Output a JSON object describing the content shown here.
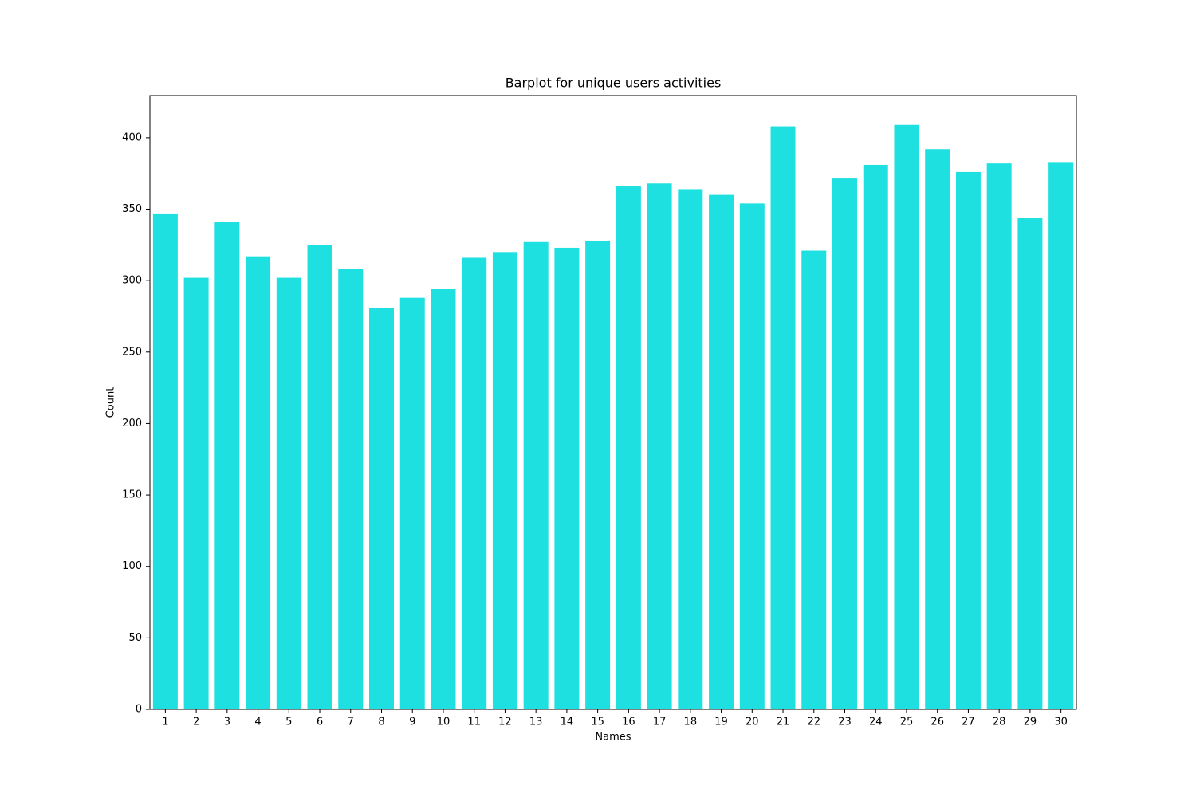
{
  "chart_data": {
    "type": "bar",
    "title": "Barplot for unique users activities",
    "x_label": "Names",
    "y_label": "Count",
    "categories": [
      "1",
      "2",
      "3",
      "4",
      "5",
      "6",
      "7",
      "8",
      "9",
      "10",
      "11",
      "12",
      "13",
      "14",
      "15",
      "16",
      "17",
      "18",
      "19",
      "20",
      "21",
      "22",
      "23",
      "24",
      "25",
      "26",
      "27",
      "28",
      "29",
      "30"
    ],
    "values": [
      347,
      302,
      341,
      317,
      302,
      325,
      308,
      281,
      288,
      294,
      316,
      320,
      327,
      323,
      328,
      366,
      368,
      364,
      360,
      354,
      408,
      321,
      372,
      381,
      409,
      392,
      376,
      382,
      344,
      383
    ],
    "color": "#1fe0e0",
    "ylim": [
      0,
      429.5
    ],
    "yticks": [
      0,
      50,
      100,
      150,
      200,
      250,
      300,
      350,
      400
    ],
    "grid": false
  }
}
